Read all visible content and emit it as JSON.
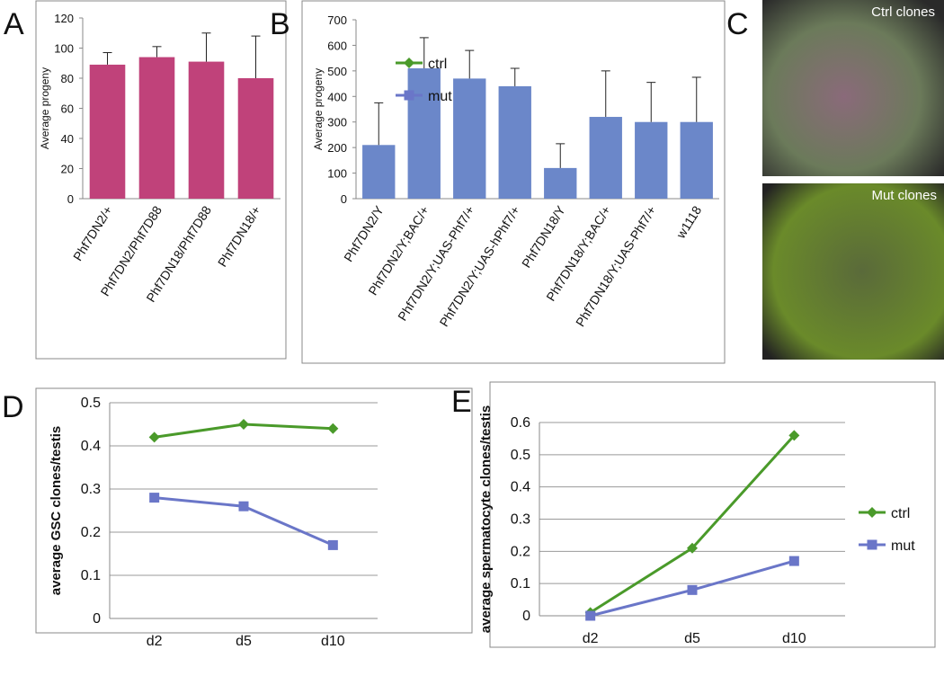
{
  "chart_data": [
    {
      "type": "bar",
      "panel_label": "A",
      "y_label": "Average progeny",
      "categories": [
        "Phf7DN2/+",
        "Phf7DN2/Phf7D88",
        "Phf7DN18/Phf7D88",
        "Phf7DN18/+"
      ],
      "values": [
        89,
        94,
        91,
        80
      ],
      "errors": [
        8,
        7,
        19,
        28
      ],
      "color": "#c0427a",
      "ylim": [
        0,
        120
      ],
      "yticks": [
        0,
        20,
        40,
        60,
        80,
        100,
        120
      ],
      "grid": false
    },
    {
      "type": "bar",
      "panel_label": "B",
      "y_label": "Average progeny",
      "categories": [
        "Phf7DN2/Y",
        "Phf7DN2/Y;BAC/+",
        "Phf7DN2/Y;UAS-Phf7/+",
        "Phf7DN2/Y;UAS-hPhf7/+",
        "Phf7DN18/Y",
        "Phf7DN18/Y;BAC/+",
        "Phf7DN18/Y;UAS-Phf7/+",
        "w1118"
      ],
      "values": [
        210,
        510,
        470,
        440,
        120,
        320,
        300,
        300
      ],
      "errors": [
        165,
        120,
        110,
        70,
        95,
        180,
        155,
        175
      ],
      "color": "#6b87c9",
      "ylim": [
        0,
        700
      ],
      "yticks": [
        0,
        100,
        200,
        300,
        400,
        500,
        600,
        700
      ],
      "grid": false
    },
    {
      "type": "line",
      "panel_label": "D",
      "y_label": "average GSC clones/testis",
      "categories": [
        "d2",
        "d5",
        "d10"
      ],
      "series": [
        {
          "name": "ctrl",
          "color": "#4a9a2a",
          "marker": "diamond",
          "values": [
            0.42,
            0.45,
            0.44
          ]
        },
        {
          "name": "mut",
          "color": "#6a76c8",
          "marker": "square",
          "values": [
            0.28,
            0.26,
            0.17
          ]
        }
      ],
      "ylim": [
        0,
        0.5
      ],
      "yticks": [
        0,
        0.1,
        0.2,
        0.3,
        0.4,
        0.5
      ],
      "grid": true
    },
    {
      "type": "line",
      "panel_label": "E",
      "y_label": "average spermatocyte clones/testis",
      "categories": [
        "d2",
        "d5",
        "d10"
      ],
      "series": [
        {
          "name": "ctrl",
          "color": "#4a9a2a",
          "marker": "diamond",
          "values": [
            0.01,
            0.21,
            0.56
          ]
        },
        {
          "name": "mut",
          "color": "#6a76c8",
          "marker": "square",
          "values": [
            0,
            0.08,
            0.17
          ]
        }
      ],
      "ylim": [
        0,
        0.6
      ],
      "yticks": [
        0,
        0.1,
        0.2,
        0.3,
        0.4,
        0.5,
        0.6
      ],
      "grid": true
    }
  ],
  "image_panel": {
    "panel_label": "C",
    "images": [
      {
        "caption": "Ctrl clones"
      },
      {
        "caption": "Mut clones"
      }
    ]
  }
}
